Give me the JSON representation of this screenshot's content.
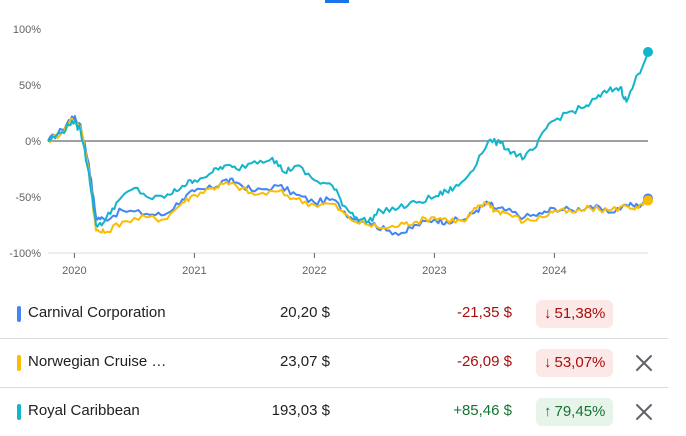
{
  "chart_data": {
    "type": "line",
    "x_ticks": [
      "2020",
      "2021",
      "2022",
      "2023",
      "2024"
    ],
    "y_ticks": [
      "100%",
      "50%",
      "0%",
      "-50%",
      "-100%"
    ],
    "ylim": [
      -100,
      100
    ],
    "xlim": [
      2019.78,
      2024.78
    ],
    "grid": false,
    "series": [
      {
        "name": "Carnival Corporation",
        "color": "#4285f4",
        "points": [
          [
            2019.78,
            0
          ],
          [
            2019.9,
            10
          ],
          [
            2019.98,
            22
          ],
          [
            2020.05,
            15
          ],
          [
            2020.12,
            -20
          ],
          [
            2020.18,
            -68
          ],
          [
            2020.25,
            -70
          ],
          [
            2020.4,
            -62
          ],
          [
            2020.6,
            -65
          ],
          [
            2020.75,
            -66
          ],
          [
            2020.9,
            -52
          ],
          [
            2021.0,
            -45
          ],
          [
            2021.15,
            -42
          ],
          [
            2021.25,
            -35
          ],
          [
            2021.35,
            -37
          ],
          [
            2021.5,
            -45
          ],
          [
            2021.7,
            -40
          ],
          [
            2021.85,
            -48
          ],
          [
            2022.0,
            -55
          ],
          [
            2022.15,
            -52
          ],
          [
            2022.3,
            -68
          ],
          [
            2022.45,
            -72
          ],
          [
            2022.6,
            -80
          ],
          [
            2022.75,
            -82
          ],
          [
            2022.85,
            -75
          ],
          [
            2023.0,
            -70
          ],
          [
            2023.1,
            -72
          ],
          [
            2023.25,
            -70
          ],
          [
            2023.35,
            -62
          ],
          [
            2023.45,
            -55
          ],
          [
            2023.5,
            -60
          ],
          [
            2023.6,
            -62
          ],
          [
            2023.75,
            -68
          ],
          [
            2023.9,
            -65
          ],
          [
            2024.0,
            -60
          ],
          [
            2024.15,
            -62
          ],
          [
            2024.3,
            -58
          ],
          [
            2024.45,
            -64
          ],
          [
            2024.6,
            -57
          ],
          [
            2024.7,
            -58
          ],
          [
            2024.78,
            -51.38
          ]
        ]
      },
      {
        "name": "Norwegian Cruise Line",
        "color": "#fbbc04",
        "points": [
          [
            2019.78,
            0
          ],
          [
            2019.9,
            8
          ],
          [
            2019.98,
            20
          ],
          [
            2020.05,
            13
          ],
          [
            2020.12,
            -25
          ],
          [
            2020.18,
            -80
          ],
          [
            2020.25,
            -82
          ],
          [
            2020.4,
            -72
          ],
          [
            2020.6,
            -68
          ],
          [
            2020.75,
            -70
          ],
          [
            2020.9,
            -55
          ],
          [
            2021.0,
            -48
          ],
          [
            2021.15,
            -42
          ],
          [
            2021.25,
            -38
          ],
          [
            2021.35,
            -40
          ],
          [
            2021.5,
            -48
          ],
          [
            2021.7,
            -45
          ],
          [
            2021.85,
            -52
          ],
          [
            2022.0,
            -57
          ],
          [
            2022.15,
            -56
          ],
          [
            2022.3,
            -70
          ],
          [
            2022.45,
            -75
          ],
          [
            2022.6,
            -78
          ],
          [
            2022.75,
            -74
          ],
          [
            2022.85,
            -72
          ],
          [
            2023.0,
            -68
          ],
          [
            2023.1,
            -70
          ],
          [
            2023.25,
            -72
          ],
          [
            2023.35,
            -60
          ],
          [
            2023.45,
            -55
          ],
          [
            2023.5,
            -62
          ],
          [
            2023.6,
            -64
          ],
          [
            2023.75,
            -72
          ],
          [
            2023.9,
            -68
          ],
          [
            2024.0,
            -62
          ],
          [
            2024.15,
            -64
          ],
          [
            2024.3,
            -60
          ],
          [
            2024.45,
            -62
          ],
          [
            2024.6,
            -58
          ],
          [
            2024.7,
            -60
          ],
          [
            2024.78,
            -53.07
          ]
        ]
      },
      {
        "name": "Royal Caribbean",
        "color": "#12b5cb",
        "points": [
          [
            2019.78,
            0
          ],
          [
            2019.9,
            8
          ],
          [
            2019.98,
            18
          ],
          [
            2020.05,
            10
          ],
          [
            2020.12,
            -28
          ],
          [
            2020.18,
            -75
          ],
          [
            2020.25,
            -72
          ],
          [
            2020.35,
            -55
          ],
          [
            2020.5,
            -42
          ],
          [
            2020.65,
            -52
          ],
          [
            2020.8,
            -48
          ],
          [
            2020.9,
            -40
          ],
          [
            2021.0,
            -35
          ],
          [
            2021.15,
            -28
          ],
          [
            2021.25,
            -22
          ],
          [
            2021.35,
            -25
          ],
          [
            2021.5,
            -18
          ],
          [
            2021.65,
            -15
          ],
          [
            2021.75,
            -28
          ],
          [
            2021.85,
            -22
          ],
          [
            2022.0,
            -35
          ],
          [
            2022.15,
            -40
          ],
          [
            2022.25,
            -58
          ],
          [
            2022.35,
            -68
          ],
          [
            2022.45,
            -72
          ],
          [
            2022.55,
            -62
          ],
          [
            2022.7,
            -60
          ],
          [
            2022.85,
            -55
          ],
          [
            2023.0,
            -50
          ],
          [
            2023.1,
            -45
          ],
          [
            2023.2,
            -40
          ],
          [
            2023.3,
            -28
          ],
          [
            2023.45,
            0
          ],
          [
            2023.55,
            -2
          ],
          [
            2023.65,
            -10
          ],
          [
            2023.75,
            -15
          ],
          [
            2023.85,
            -5
          ],
          [
            2023.95,
            15
          ],
          [
            2024.1,
            25
          ],
          [
            2024.25,
            30
          ],
          [
            2024.35,
            38
          ],
          [
            2024.45,
            45
          ],
          [
            2024.55,
            48
          ],
          [
            2024.6,
            35
          ],
          [
            2024.7,
            60
          ],
          [
            2024.78,
            79.45
          ]
        ]
      }
    ]
  },
  "rows": [
    {
      "name": "Carnival Corporation",
      "price": "20,20 $",
      "change": "-21,35 $",
      "pct": "51,38%",
      "arrow": "↓",
      "color": "#4285f4",
      "trend": "neg"
    },
    {
      "name": "Norwegian Cruise Line",
      "price": "23,07 $",
      "change": "-26,09 $",
      "pct": "53,07%",
      "arrow": "↓",
      "color": "#fbbc04",
      "trend": "neg"
    },
    {
      "name": "Royal Caribbean",
      "price": "193,03 $",
      "change": "+85,46 $",
      "pct": "79,45%",
      "arrow": "↑",
      "color": "#12b5cb",
      "trend": "pos"
    }
  ]
}
